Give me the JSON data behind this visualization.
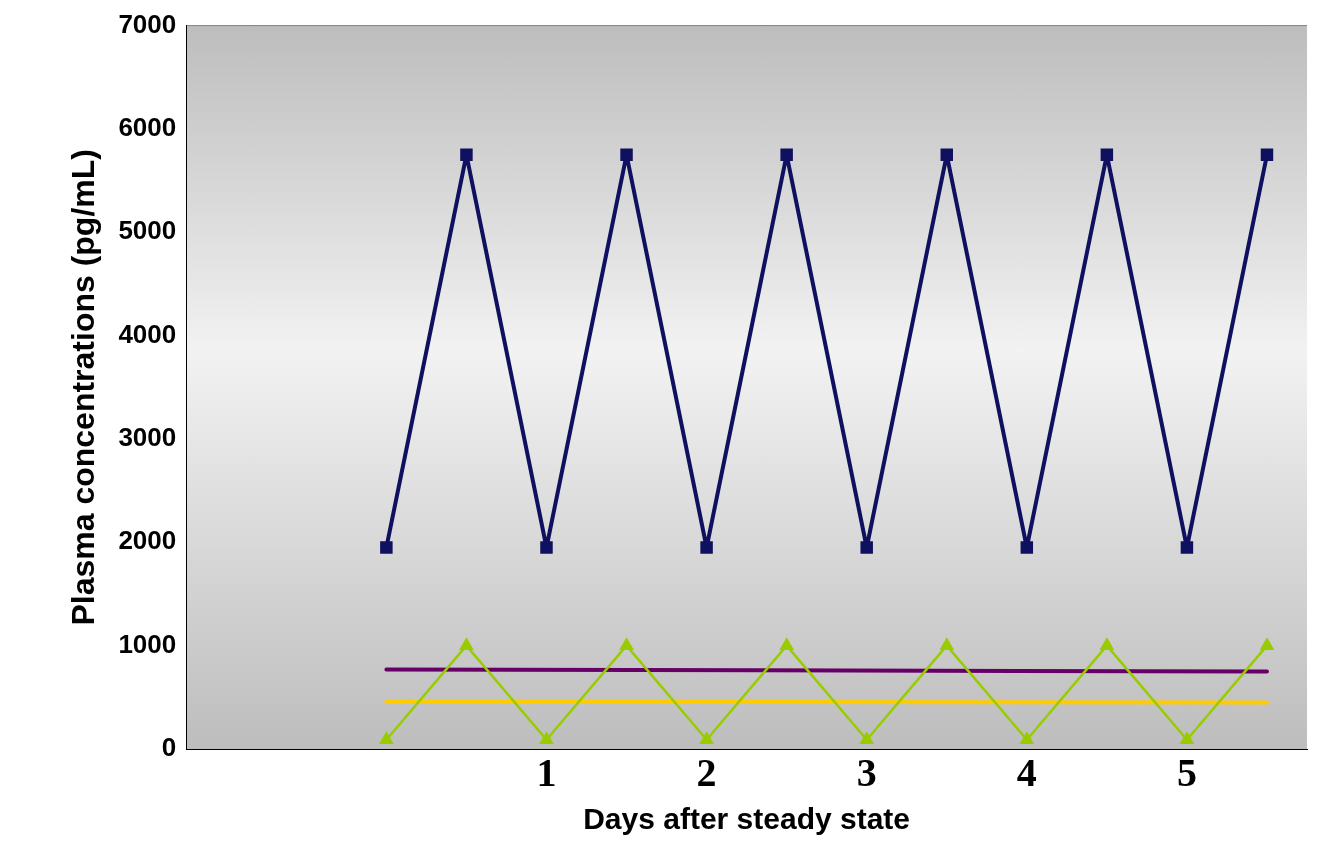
{
  "chart_data": {
    "type": "line",
    "xlabel": "Days after steady state",
    "ylabel": "Plasma concentrations (pg/mL)",
    "xlim": [
      -1.25,
      5.75
    ],
    "xticks": [
      1,
      2,
      3,
      4,
      5
    ],
    "ylim": [
      0,
      7000
    ],
    "yticks": [
      0,
      1000,
      2000,
      3000,
      4000,
      5000,
      6000,
      7000
    ],
    "grid": false,
    "legend": false,
    "series": [
      {
        "color": "#101060",
        "marker": "square",
        "x": [
          0,
          0.5,
          1,
          1.5,
          2,
          2.5,
          3,
          3.5,
          4,
          4.5,
          5,
          5.5
        ],
        "values": [
          1950,
          5750,
          1950,
          5750,
          1950,
          5750,
          1950,
          5750,
          1950,
          5750,
          1950,
          5750
        ]
      },
      {
        "color": "#99cc00",
        "marker": "triangle",
        "x": [
          0,
          0.5,
          1,
          1.5,
          2,
          2.5,
          3,
          3.5,
          4,
          4.5,
          5,
          5.5
        ],
        "values": [
          90,
          1000,
          90,
          1000,
          90,
          1000,
          90,
          1000,
          90,
          1000,
          90,
          1000
        ]
      },
      {
        "color": "#660066",
        "marker": "none",
        "x": [
          0,
          5.5
        ],
        "values": [
          770,
          750
        ]
      },
      {
        "color": "#ffcc00",
        "marker": "none",
        "x": [
          0,
          5.5
        ],
        "values": [
          460,
          450
        ]
      }
    ]
  }
}
